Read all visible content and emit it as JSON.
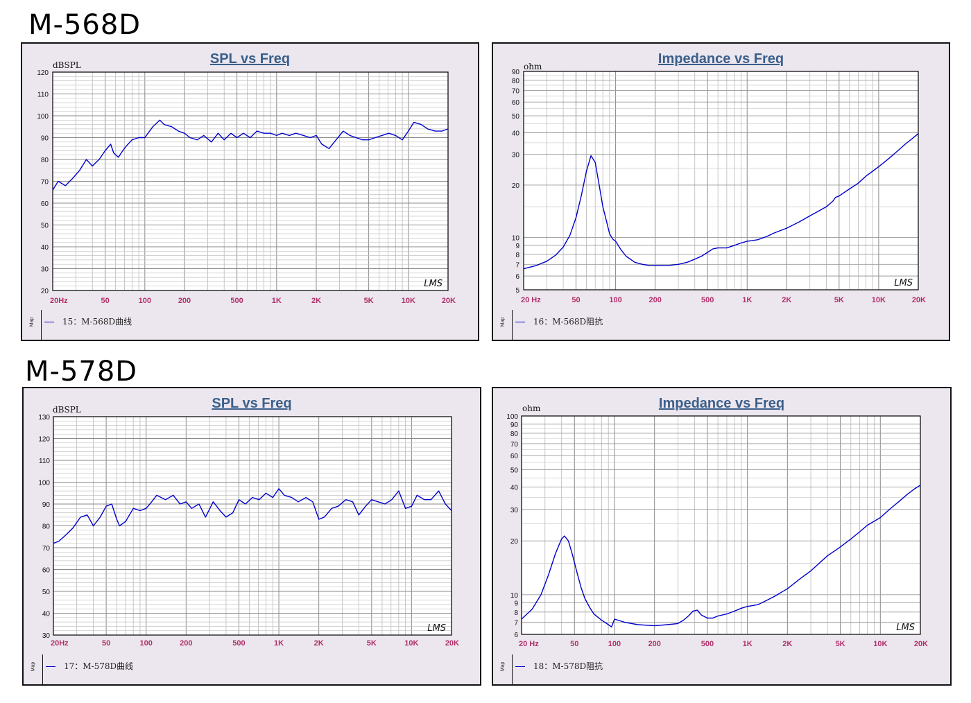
{
  "models": [
    {
      "title": "M-568D"
    },
    {
      "title": "M-578D"
    }
  ],
  "chart_data": [
    {
      "type": "line",
      "title": "SPL vs Freq",
      "ylabel": "dBSPL",
      "xscale": "log",
      "xlim": [
        20,
        20000
      ],
      "ylim": [
        20,
        120
      ],
      "yticks": [
        20,
        30,
        40,
        50,
        60,
        70,
        80,
        90,
        100,
        110,
        120
      ],
      "xticklabels": [
        "20Hz",
        "50",
        "100",
        "200",
        "500",
        "1K",
        "2K",
        "5K",
        "10K",
        "20K"
      ],
      "xtickvalues": [
        20,
        50,
        100,
        200,
        500,
        1000,
        2000,
        5000,
        10000,
        20000
      ],
      "watermark": "LMS",
      "legend": "15：M-568D曲线",
      "series": [
        {
          "name": "15：M-568D曲线",
          "color": "#0000cc",
          "x": [
            20,
            22,
            25,
            28,
            32,
            36,
            40,
            45,
            50,
            55,
            58,
            63,
            68,
            72,
            80,
            90,
            100,
            115,
            130,
            140,
            160,
            180,
            200,
            220,
            250,
            280,
            320,
            360,
            400,
            450,
            500,
            560,
            630,
            710,
            800,
            900,
            1000,
            1100,
            1250,
            1400,
            1600,
            1800,
            2000,
            2200,
            2500,
            3200,
            3600,
            4000,
            4500,
            5000,
            5600,
            6300,
            7100,
            8000,
            9000,
            10000,
            11000,
            12500,
            14000,
            16000,
            18000,
            20000
          ],
          "y": [
            66,
            70,
            68,
            71,
            75,
            80,
            77,
            80,
            84,
            87,
            83,
            81,
            84,
            86,
            89,
            90,
            90,
            95,
            98,
            96,
            95,
            93,
            92,
            90,
            89,
            91,
            88,
            92,
            89,
            92,
            90,
            92,
            90,
            93,
            92,
            92,
            91,
            92,
            91,
            92,
            91,
            90,
            91,
            87,
            85,
            93,
            91,
            90,
            89,
            89,
            90,
            91,
            92,
            91,
            89,
            93,
            97,
            96,
            94,
            93,
            93,
            94
          ]
        }
      ]
    },
    {
      "type": "line",
      "title": "Impedance vs Freq",
      "ylabel": "ohm",
      "xscale": "log",
      "yscale": "log",
      "xlim": [
        20,
        20000
      ],
      "ylim": [
        5,
        90
      ],
      "yticks": [
        5,
        6,
        7,
        8,
        9,
        10,
        20,
        30,
        40,
        50,
        60,
        70,
        80,
        90
      ],
      "xticklabels": [
        "20 Hz",
        "50",
        "100",
        "200",
        "500",
        "1K",
        "2K",
        "5K",
        "10K",
        "20K"
      ],
      "xtickvalues": [
        20,
        50,
        100,
        200,
        500,
        1000,
        2000,
        5000,
        10000,
        20000
      ],
      "watermark": "LMS",
      "legend": "16：M-568D阻抗",
      "series": [
        {
          "name": "16：M-568D阻抗",
          "color": "#0000cc",
          "x": [
            20,
            25,
            30,
            35,
            40,
            45,
            50,
            55,
            60,
            65,
            70,
            75,
            80,
            85,
            90,
            95,
            100,
            110,
            120,
            140,
            160,
            180,
            200,
            250,
            300,
            350,
            400,
            450,
            500,
            550,
            600,
            700,
            800,
            900,
            1000,
            1100,
            1200,
            1400,
            1600,
            2000,
            2500,
            3000,
            4000,
            4500,
            4700,
            5000,
            6000,
            7000,
            8000,
            9000,
            10000,
            11000,
            12000,
            14000,
            16000,
            18000,
            20000
          ],
          "y": [
            6.6,
            6.9,
            7.3,
            7.9,
            8.8,
            10.3,
            13,
            17.5,
            24,
            29.5,
            27,
            20,
            15,
            12.5,
            10.5,
            9.8,
            9.5,
            8.5,
            7.8,
            7.2,
            7.0,
            6.9,
            6.9,
            6.9,
            7.0,
            7.2,
            7.5,
            7.8,
            8.2,
            8.6,
            8.7,
            8.7,
            9.0,
            9.3,
            9.5,
            9.6,
            9.7,
            10.1,
            10.6,
            11.3,
            12.3,
            13.3,
            15,
            16.2,
            17.0,
            17.3,
            19,
            20.5,
            22.5,
            24,
            25.5,
            27,
            28.5,
            31.5,
            34.5,
            37,
            39.5
          ]
        }
      ]
    },
    {
      "type": "line",
      "title": "SPL vs Freq",
      "ylabel": "dBSPL",
      "xscale": "log",
      "xlim": [
        20,
        20000
      ],
      "ylim": [
        30,
        130
      ],
      "yticks": [
        30,
        40,
        50,
        60,
        70,
        80,
        90,
        100,
        110,
        120,
        130
      ],
      "xticklabels": [
        "20Hz",
        "50",
        "100",
        "200",
        "500",
        "1K",
        "2K",
        "5K",
        "10K",
        "20K"
      ],
      "xtickvalues": [
        20,
        50,
        100,
        200,
        500,
        1000,
        2000,
        5000,
        10000,
        20000
      ],
      "watermark": "LMS",
      "legend": "17：M-578D曲线",
      "series": [
        {
          "name": "17：M-578D曲线",
          "color": "#0000cc",
          "x": [
            20,
            22,
            25,
            28,
            32,
            36,
            40,
            45,
            50,
            55,
            60,
            63,
            70,
            80,
            90,
            100,
            110,
            120,
            140,
            160,
            180,
            200,
            220,
            250,
            280,
            320,
            360,
            400,
            450,
            500,
            560,
            630,
            710,
            800,
            900,
            1000,
            1100,
            1250,
            1400,
            1600,
            1800,
            2000,
            2200,
            2500,
            2800,
            3200,
            3600,
            4000,
            4500,
            5000,
            5600,
            6300,
            7100,
            8000,
            9000,
            10000,
            11000,
            12500,
            14000,
            16000,
            18000,
            20000
          ],
          "y": [
            72,
            73,
            76,
            79,
            84,
            85,
            80,
            84,
            89,
            90,
            83,
            80,
            82,
            88,
            87,
            88,
            91,
            94,
            92,
            94,
            90,
            91,
            88,
            90,
            84,
            91,
            87,
            84,
            86,
            92,
            90,
            93,
            92,
            95,
            93,
            97,
            94,
            93,
            91,
            93,
            91,
            83,
            84,
            88,
            89,
            92,
            91,
            85,
            89,
            92,
            91,
            90,
            92,
            96,
            88,
            89,
            94,
            92,
            92,
            96,
            90,
            87
          ]
        }
      ]
    },
    {
      "type": "line",
      "title": "Impedance vs Freq",
      "ylabel": "ohm",
      "xscale": "log",
      "yscale": "log",
      "xlim": [
        20,
        20000
      ],
      "ylim": [
        6,
        100
      ],
      "yticks": [
        6,
        7,
        8,
        9,
        10,
        20,
        30,
        40,
        50,
        60,
        70,
        80,
        90,
        100
      ],
      "xticklabels": [
        "20 Hz",
        "50",
        "100",
        "200",
        "500",
        "1K",
        "2K",
        "5K",
        "10K",
        "20K"
      ],
      "xtickvalues": [
        20,
        50,
        100,
        200,
        500,
        1000,
        2000,
        5000,
        10000,
        20000
      ],
      "watermark": "LMS",
      "legend": "18：M-578D阻抗",
      "series": [
        {
          "name": "18：M-578D阻抗",
          "color": "#0000cc",
          "x": [
            20,
            24,
            28,
            32,
            36,
            40,
            42,
            45,
            48,
            52,
            56,
            60,
            65,
            70,
            80,
            90,
            95,
            100,
            120,
            150,
            200,
            250,
            300,
            330,
            360,
            390,
            420,
            450,
            500,
            550,
            600,
            700,
            800,
            900,
            1000,
            1100,
            1200,
            1400,
            1600,
            2000,
            2500,
            3000,
            4000,
            5000,
            6000,
            7000,
            8000,
            10000,
            12000,
            14000,
            16000,
            18000,
            20000
          ],
          "y": [
            7.3,
            8.3,
            10,
            13,
            17,
            20.5,
            21.3,
            20,
            17,
            13.5,
            11,
            9.5,
            8.5,
            7.8,
            7.2,
            6.8,
            6.6,
            7.3,
            7.0,
            6.8,
            6.7,
            6.8,
            6.9,
            7.2,
            7.6,
            8.1,
            8.2,
            7.7,
            7.4,
            7.4,
            7.6,
            7.8,
            8.1,
            8.4,
            8.6,
            8.7,
            8.8,
            9.3,
            9.8,
            10.8,
            12.3,
            13.6,
            16.5,
            18.5,
            20.5,
            22.5,
            24.5,
            27,
            30.5,
            33.5,
            36.5,
            39,
            41
          ]
        }
      ]
    }
  ]
}
